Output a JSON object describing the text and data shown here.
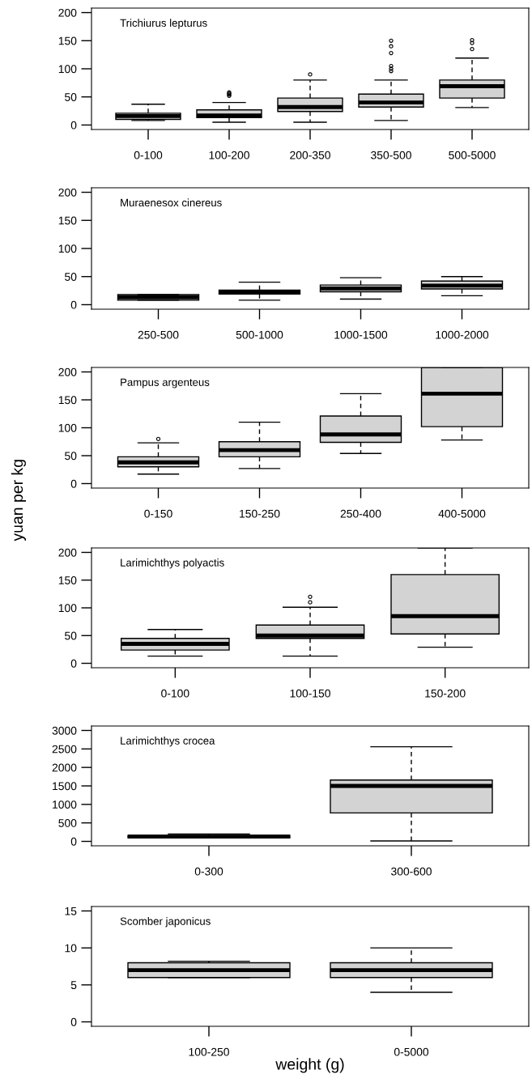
{
  "chart_data": [
    {
      "type": "box",
      "title": "Trichiurus lepturus",
      "categories": [
        "0-100",
        "100-200",
        "200-350",
        "350-500",
        "500-5000"
      ],
      "ylim": [
        -8,
        208
      ],
      "yticks": [
        0,
        50,
        100,
        150,
        200
      ],
      "color": "#d3d3d3",
      "grid": false,
      "boxes": [
        {
          "low": 8,
          "q1": 10,
          "median": 16,
          "q3": 21,
          "high": 37
        },
        {
          "low": 5,
          "q1": 13,
          "median": 17,
          "q3": 27,
          "high": 40,
          "outliers": [
            52,
            54,
            56,
            58
          ]
        },
        {
          "low": 5,
          "q1": 24,
          "median": 32,
          "q3": 48,
          "high": 80,
          "outliers": [
            90
          ]
        },
        {
          "low": 8,
          "q1": 32,
          "median": 40,
          "q3": 55,
          "high": 80,
          "outliers": [
            96,
            100,
            105,
            128,
            140,
            150
          ]
        },
        {
          "low": 31,
          "q1": 48,
          "median": 69,
          "q3": 80,
          "high": 119,
          "outliers": [
            135,
            146,
            151
          ]
        }
      ]
    },
    {
      "type": "box",
      "title": "Muraenesox cinereus",
      "categories": [
        "250-500",
        "500-1000",
        "1000-1500",
        "1000-2000"
      ],
      "ylim": [
        -8,
        208
      ],
      "yticks": [
        0,
        50,
        100,
        150,
        200
      ],
      "color": "#d3d3d3",
      "grid": false,
      "boxes": [
        {
          "low": 8,
          "q1": 8,
          "median": 13,
          "q3": 18,
          "high": 18
        },
        {
          "low": 8,
          "q1": 19,
          "median": 22,
          "q3": 26,
          "high": 40
        },
        {
          "low": 10,
          "q1": 23,
          "median": 29,
          "q3": 35,
          "high": 48
        },
        {
          "low": 16,
          "q1": 28,
          "median": 34,
          "q3": 42,
          "high": 50
        }
      ]
    },
    {
      "type": "box",
      "title": "Pampus argenteus",
      "categories": [
        "0-150",
        "150-250",
        "250-400",
        "400-5000"
      ],
      "ylim": [
        -8,
        208
      ],
      "yticks": [
        0,
        50,
        100,
        150,
        200
      ],
      "color": "#d3d3d3",
      "grid": false,
      "boxes": [
        {
          "low": 17,
          "q1": 30,
          "median": 38,
          "q3": 48,
          "high": 73,
          "outliers": [
            80
          ]
        },
        {
          "low": 27,
          "q1": 48,
          "median": 60,
          "q3": 75,
          "high": 110
        },
        {
          "low": 54,
          "q1": 74,
          "median": 88,
          "q3": 121,
          "high": 161
        },
        {
          "low": 78,
          "q1": 102,
          "median": 161,
          "q3": 208,
          "high": 208
        }
      ]
    },
    {
      "type": "box",
      "title": "Larimichthys polyactis",
      "ylabel": "yuan per kg",
      "categories": [
        "0-100",
        "100-150",
        "150-200"
      ],
      "ylim": [
        -8,
        208
      ],
      "yticks": [
        0,
        50,
        100,
        150,
        200
      ],
      "color": "#d3d3d3",
      "grid": false,
      "boxes": [
        {
          "low": 13,
          "q1": 24,
          "median": 35,
          "q3": 45,
          "high": 61
        },
        {
          "low": 13,
          "q1": 45,
          "median": 50,
          "q3": 69,
          "high": 101,
          "outliers": [
            110,
            120
          ]
        },
        {
          "low": 29,
          "q1": 53,
          "median": 85,
          "q3": 160,
          "high": 208
        }
      ]
    },
    {
      "type": "box",
      "title": "Larimichthys crocea",
      "categories": [
        "0-300",
        "300-600"
      ],
      "ylim": [
        -120,
        3120
      ],
      "yticks": [
        0,
        500,
        1000,
        1500,
        2000,
        2500,
        3000
      ],
      "color": "#d3d3d3",
      "grid": false,
      "boxes": [
        {
          "low": 90,
          "q1": 100,
          "median": 130,
          "q3": 160,
          "high": 200
        },
        {
          "low": 10,
          "q1": 770,
          "median": 1500,
          "q3": 1660,
          "high": 2560
        }
      ]
    },
    {
      "type": "box",
      "title": "Scomber japonicus",
      "xlabel": "weight (g)",
      "categories": [
        "100-250",
        "0-5000"
      ],
      "ylim": [
        -0.6,
        15.6
      ],
      "yticks": [
        0,
        5,
        10,
        15
      ],
      "color": "#d3d3d3",
      "grid": false,
      "boxes": [
        {
          "low": 6,
          "q1": 6,
          "median": 7,
          "q3": 8,
          "high": 8.2
        },
        {
          "low": 4,
          "q1": 6,
          "median": 7,
          "q3": 8,
          "high": 10
        }
      ]
    }
  ]
}
